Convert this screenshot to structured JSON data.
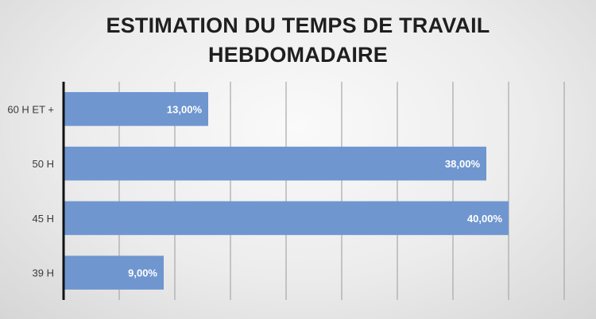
{
  "chart_data": {
    "type": "bar",
    "orientation": "horizontal",
    "title_line1": "ESTIMATION DU TEMPS DE TRAVAIL",
    "title_line2": "HEBDOMADAIRE",
    "categories": [
      "60 H ET +",
      "50 H",
      "45 H",
      "39 H"
    ],
    "values": [
      13,
      38,
      40,
      9
    ],
    "data_labels": [
      "13,00%",
      "38,00%",
      "40,00%",
      "9,00%"
    ],
    "unit": "%",
    "xlim": [
      0,
      45
    ],
    "grid_step": 5,
    "grid": true,
    "bar_color": "#6f96cf",
    "grid_color": "#a8a8a8"
  }
}
